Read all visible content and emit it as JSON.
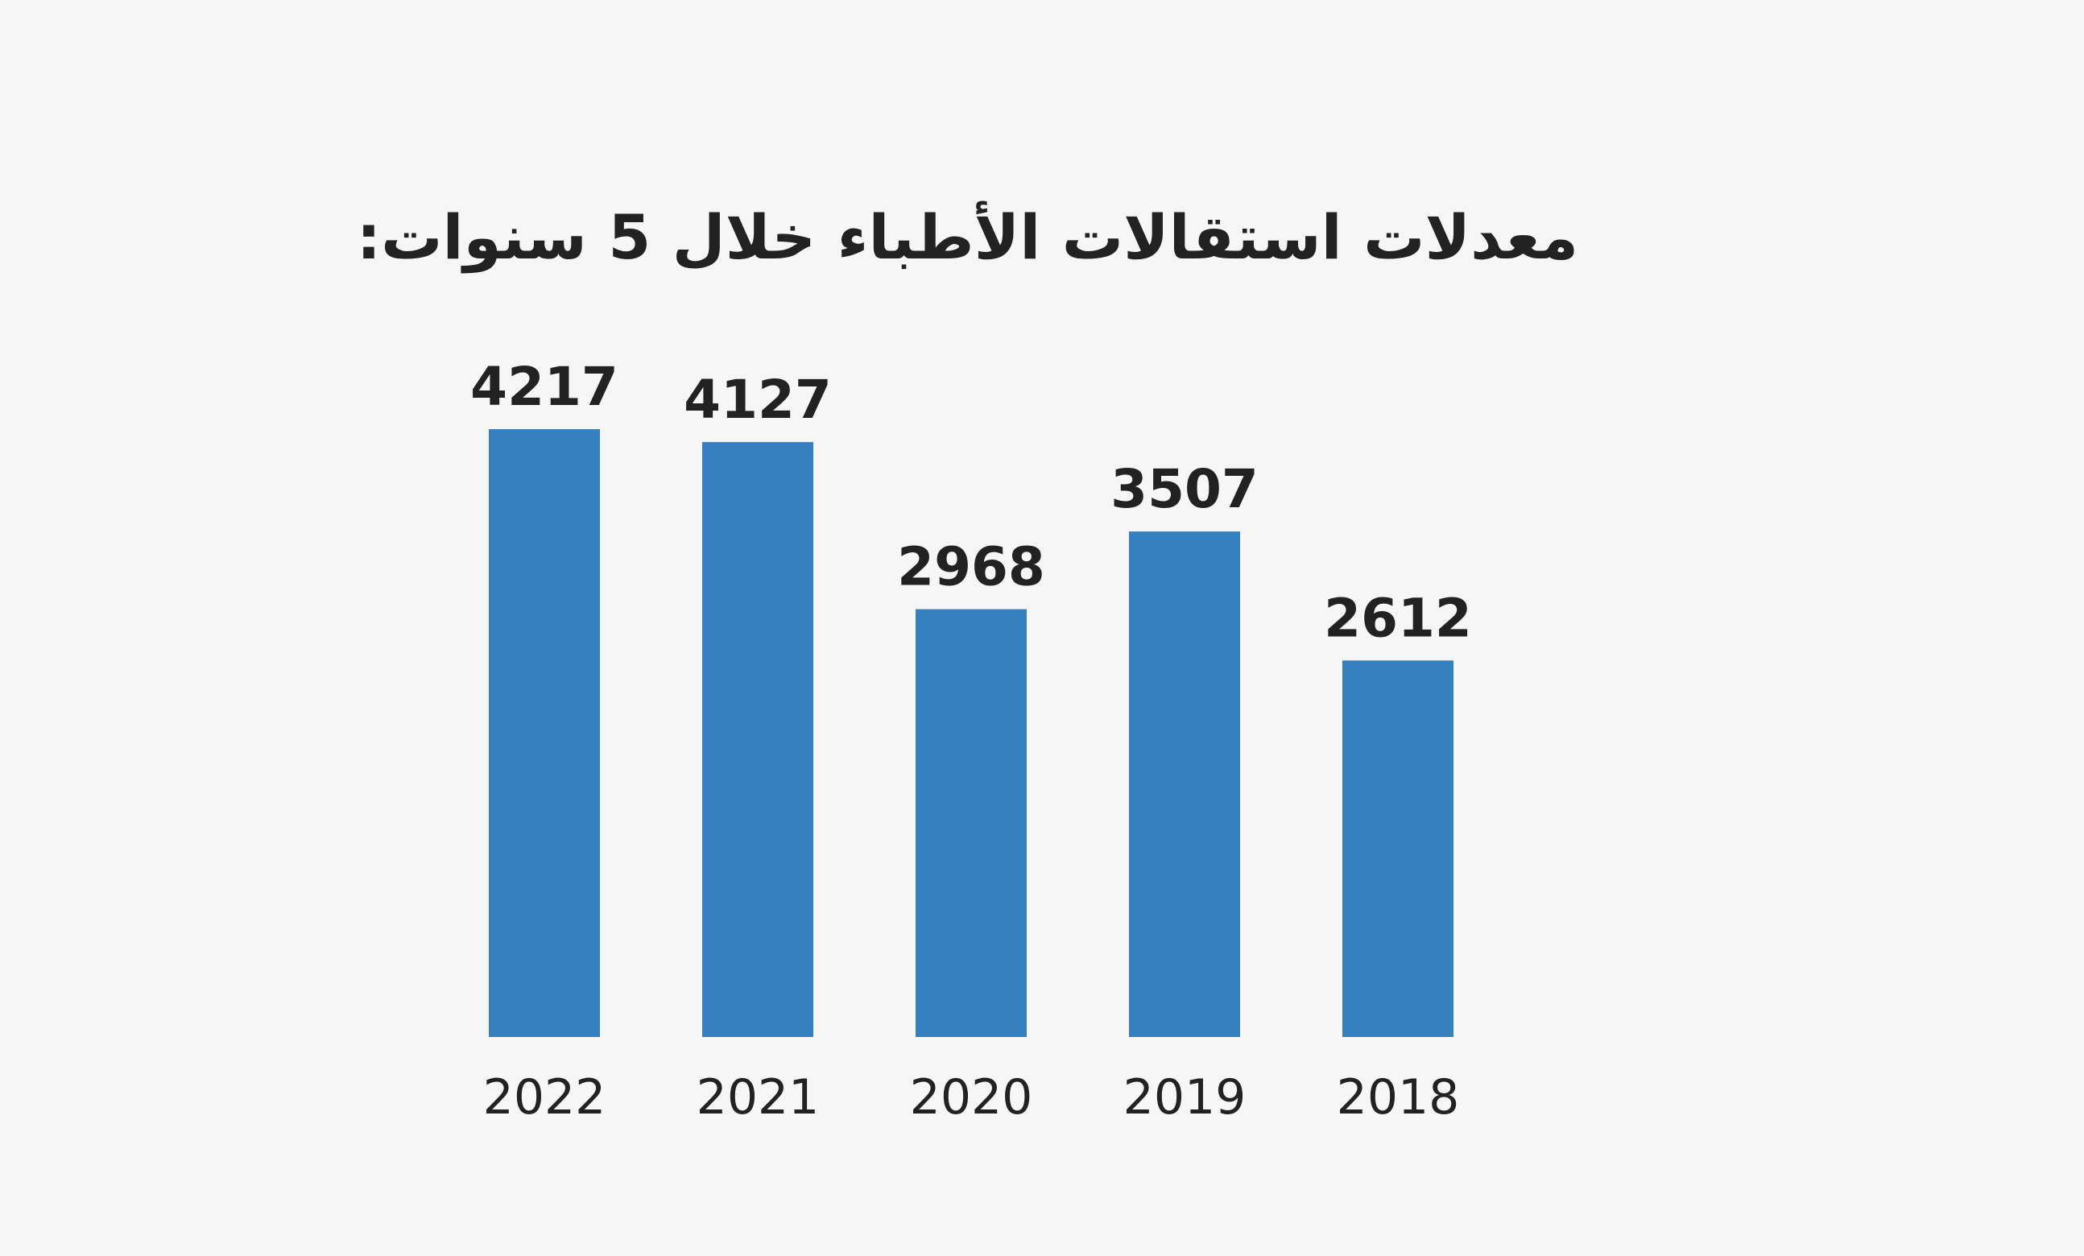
{
  "chart_data": {
    "type": "bar",
    "title": "معدلات استقالات الأطباء خلال 5 سنوات:",
    "categories": [
      "2022",
      "2021",
      "2020",
      "2019",
      "2018"
    ],
    "values": [
      4217,
      4127,
      2968,
      3507,
      2612
    ],
    "ylim": [
      0,
      4217
    ],
    "xlabel": "",
    "ylabel": "",
    "grid": false,
    "legend": "none",
    "bar_color": "#3680c0",
    "background": "#f6f6f6",
    "text_color": "#222222"
  }
}
